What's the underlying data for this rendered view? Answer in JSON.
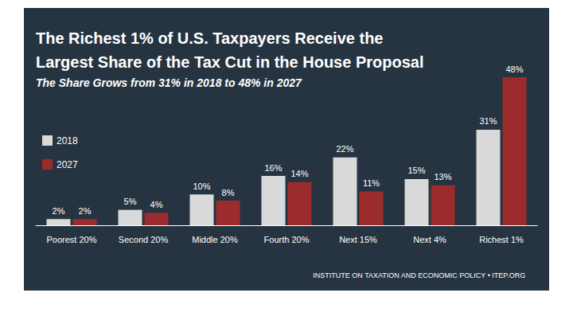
{
  "chart_data": {
    "type": "bar",
    "title": "The Richest 1% of U.S. Taxpayers Receive the\nLargest Share of the Tax Cut in the House Proposal",
    "subtitle": "The Share Grows from 31% in 2018 to 48% in 2027",
    "source": "INSTITUTE ON TAXATION AND ECONOMIC POLICY • ITEP.ORG",
    "categories": [
      "Poorest 20%",
      "Second 20%",
      "Middle 20%",
      "Fourth 20%",
      "Next 15%",
      "Next 4%",
      "Richest 1%"
    ],
    "series": [
      {
        "name": "2018",
        "color": "#d9d9d9",
        "values": [
          2,
          5,
          10,
          16,
          22,
          15,
          31
        ],
        "value_labels": [
          "2%",
          "5%",
          "10%",
          "16%",
          "22%",
          "15%",
          "31%"
        ]
      },
      {
        "name": "2027",
        "color": "#9b2b2c",
        "values": [
          2,
          4,
          8,
          14,
          11,
          13,
          48
        ],
        "value_labels": [
          "2%",
          "4%",
          "8%",
          "14%",
          "11%",
          "13%",
          "48%"
        ]
      }
    ],
    "ylim": [
      0,
      48
    ],
    "grid": false,
    "legend": "left",
    "data_labels": true,
    "tick_labels": "x"
  }
}
